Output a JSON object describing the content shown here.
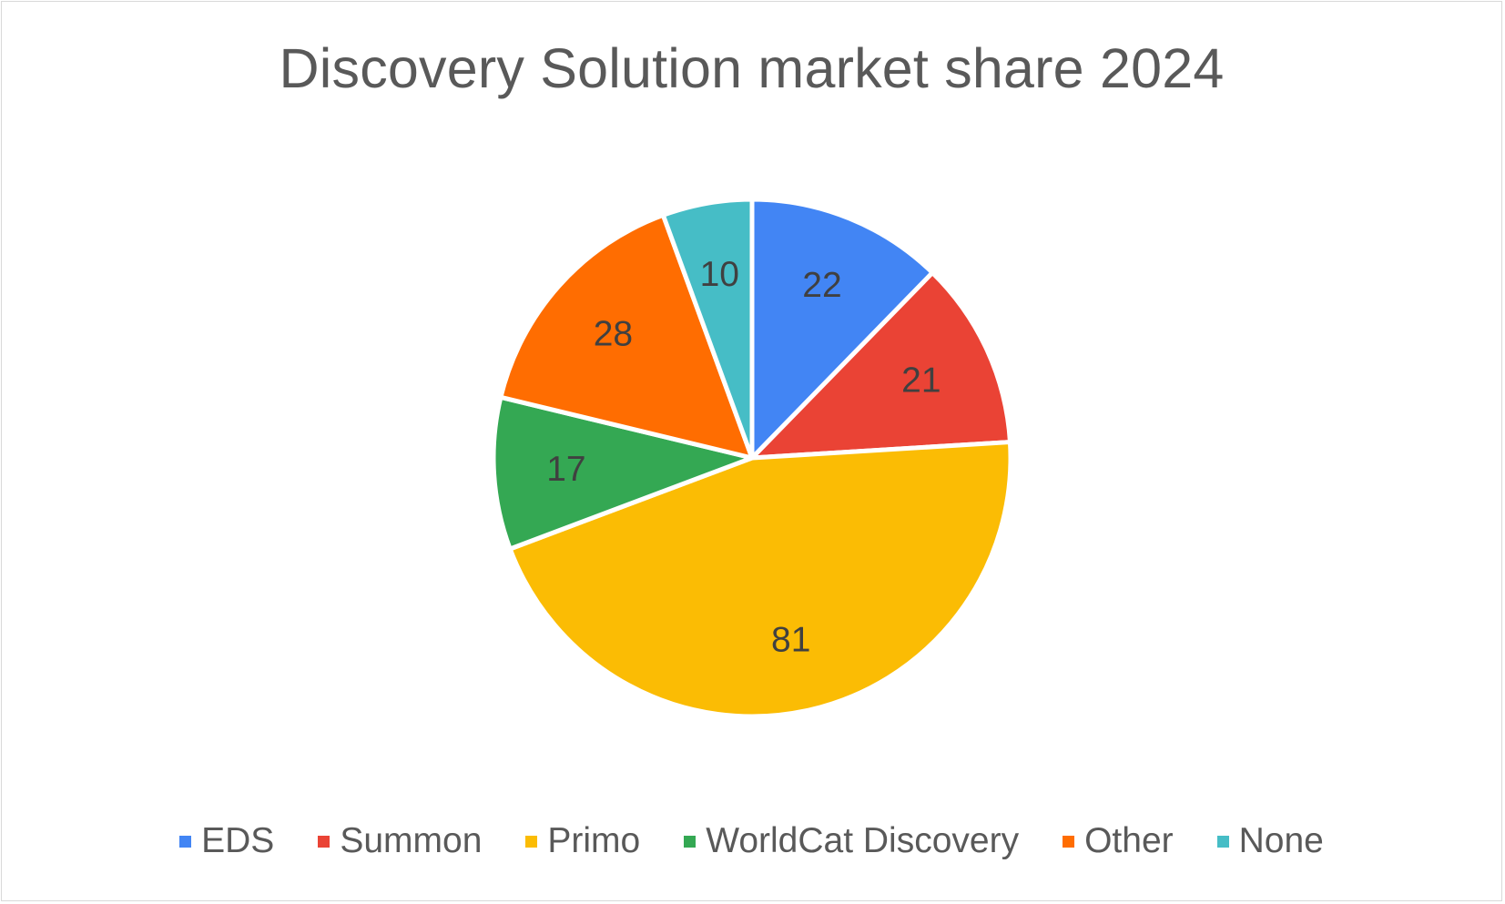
{
  "chart_data": {
    "type": "pie",
    "title": "Discovery Solution market share 2024",
    "categories": [
      "EDS",
      "Summon",
      "Primo",
      "WorldCat Discovery",
      "Other",
      "None"
    ],
    "values": [
      22,
      21,
      81,
      17,
      28,
      10
    ],
    "colors": [
      "#4285f4",
      "#ea4335",
      "#fbbc04",
      "#34a853",
      "#ff6d01",
      "#46bdc6"
    ],
    "legend_position": "bottom",
    "start_angle": "12 o'clock, clockwise"
  }
}
